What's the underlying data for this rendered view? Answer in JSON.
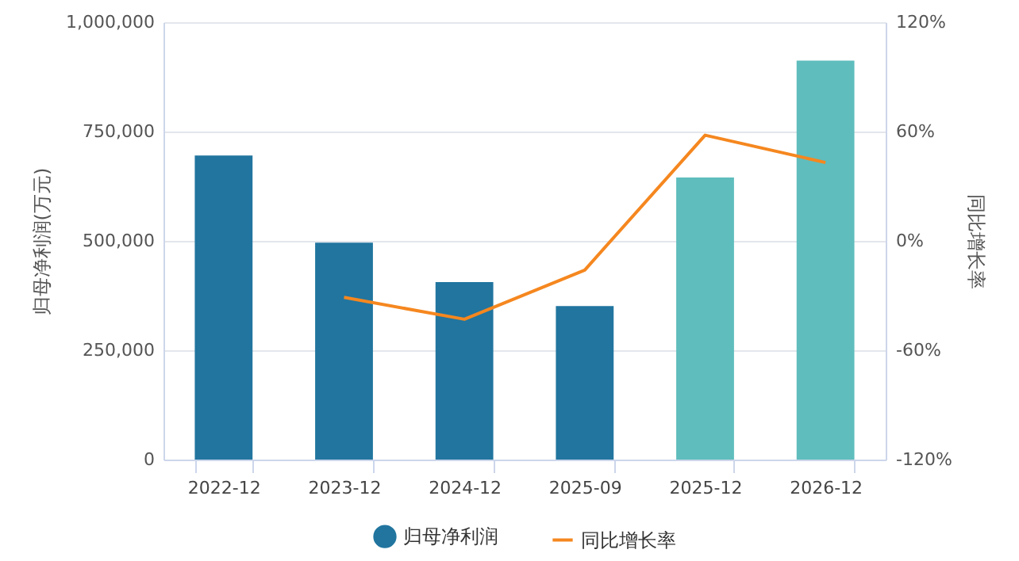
{
  "chart_data": {
    "type": "bar",
    "ylabel": "归母净利润(万元)",
    "y2label": "同比增长率",
    "categories": [
      "2022-12",
      "2023-12",
      "2024-12",
      "2025-09",
      "2025-12",
      "2026-12"
    ],
    "series": [
      {
        "name": "归母净利润",
        "colors": [
          "#21759f",
          "#21759f",
          "#21759f",
          "#21759f",
          "#5fbdbd",
          "#5fbdbd"
        ],
        "values": [
          695000,
          496000,
          406000,
          351000,
          645000,
          912000
        ]
      },
      {
        "name": "同比增长率",
        "type": "line",
        "axis": "y2",
        "color": "#f5871f",
        "values": [
          null,
          -31,
          -43,
          -16,
          58,
          43
        ]
      }
    ],
    "ylim": [
      0,
      1000000
    ],
    "yticks": [
      {
        "value": 0,
        "label": "0"
      },
      {
        "value": 250000,
        "label": "250,000"
      },
      {
        "value": 500000,
        "label": "500,000"
      },
      {
        "value": 750000,
        "label": "750,000"
      },
      {
        "value": 1000000,
        "label": "1,000,000"
      }
    ],
    "y2lim": [
      -120,
      120
    ],
    "y2ticks": [
      {
        "value": -120,
        "label": "-120%"
      },
      {
        "value": -60,
        "label": "-60%"
      },
      {
        "value": 0,
        "label": "0%"
      },
      {
        "value": 60,
        "label": "60%"
      },
      {
        "value": 120,
        "label": "120%"
      }
    ],
    "grid": "y",
    "legend": "bottom",
    "marker": "none"
  }
}
